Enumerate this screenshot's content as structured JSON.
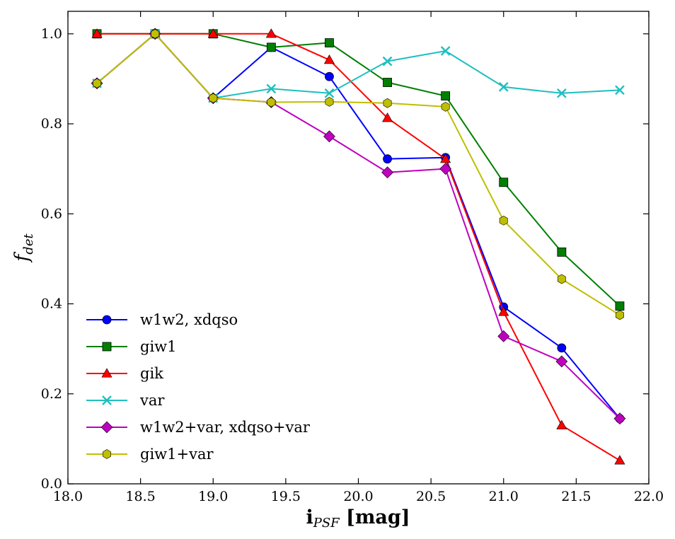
{
  "chart_data": {
    "type": "line",
    "xlabel_main": "i",
    "xlabel_sub": "PSF",
    "xlabel_unit": " [mag]",
    "ylabel_main": "f",
    "ylabel_sub": "det",
    "xlim": [
      18.0,
      22.0
    ],
    "ylim": [
      0.0,
      1.05
    ],
    "xticks": [
      18.0,
      18.5,
      19.0,
      19.5,
      20.0,
      20.5,
      21.0,
      21.5,
      22.0
    ],
    "xtick_labels": [
      "18.0",
      "18.5",
      "19.0",
      "19.5",
      "20.0",
      "20.5",
      "21.0",
      "21.5",
      "22.0"
    ],
    "yticks": [
      0.0,
      0.2,
      0.4,
      0.6,
      0.8,
      1.0
    ],
    "ytick_labels": [
      "0.0",
      "0.2",
      "0.4",
      "0.6",
      "0.8",
      "1.0"
    ],
    "grid": false,
    "legend_position": "lower-left",
    "x": [
      18.2,
      18.6,
      19.0,
      19.4,
      19.8,
      20.2,
      20.6,
      21.0,
      21.4,
      21.8
    ],
    "series": [
      {
        "name": "w1w2, xdqso",
        "color": "#0000ff",
        "marker": "circle",
        "values": [
          0.89,
          1.0,
          0.857,
          0.97,
          0.905,
          0.722,
          0.725,
          0.393,
          0.302,
          0.145
        ]
      },
      {
        "name": "giw1",
        "color": "#007f00",
        "marker": "square",
        "values": [
          1.0,
          1.0,
          1.0,
          0.97,
          0.98,
          0.892,
          0.862,
          0.67,
          0.515,
          0.395
        ]
      },
      {
        "name": "gik",
        "color": "#ff0000",
        "marker": "triangle",
        "values": [
          1.0,
          1.0,
          1.0,
          1.0,
          0.942,
          0.813,
          0.722,
          0.382,
          0.13,
          0.052
        ]
      },
      {
        "name": "var",
        "color": "#1fbfbf",
        "marker": "x",
        "values": [
          0.89,
          1.0,
          0.857,
          0.878,
          0.868,
          0.939,
          0.962,
          0.882,
          0.868,
          0.875
        ]
      },
      {
        "name": "w1w2+var, xdqso+var",
        "color": "#bf00bf",
        "marker": "diamond",
        "values": [
          0.89,
          1.0,
          0.857,
          0.848,
          0.772,
          0.692,
          0.7,
          0.328,
          0.272,
          0.145
        ]
      },
      {
        "name": "giw1+var",
        "color": "#bfbf00",
        "marker": "hexagon",
        "values": [
          0.89,
          1.0,
          0.857,
          0.848,
          0.849,
          0.846,
          0.838,
          0.585,
          0.455,
          0.375
        ]
      }
    ]
  }
}
